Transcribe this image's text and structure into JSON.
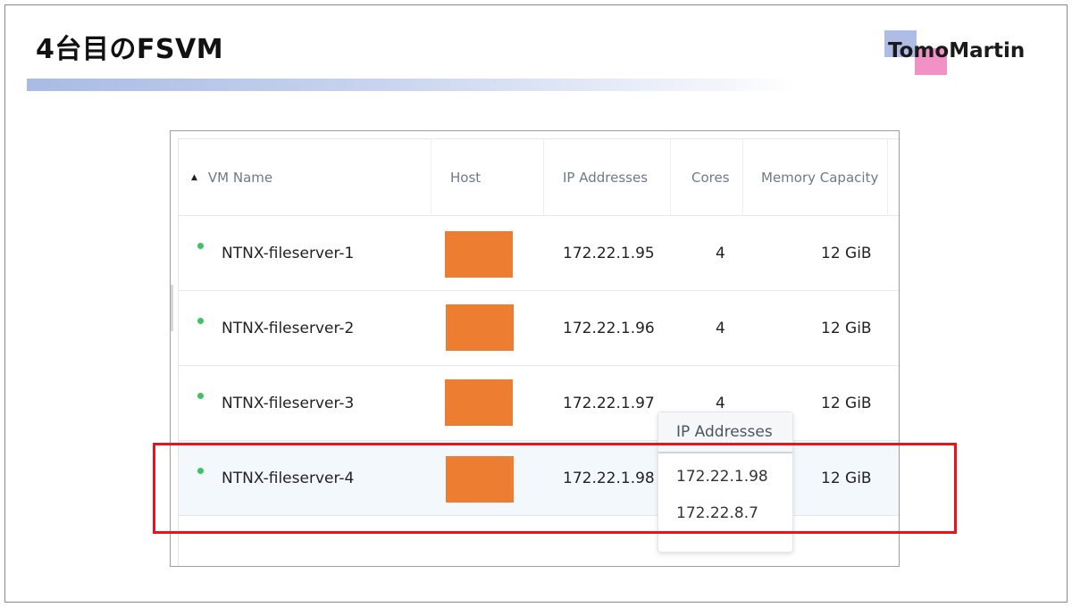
{
  "slide": {
    "title": "4台目のFSVM",
    "logo_text": "TomoMartin"
  },
  "table": {
    "columns": [
      {
        "label": "VM Name",
        "sorted": "ascending"
      },
      {
        "label": "Host"
      },
      {
        "label": "IP Addresses"
      },
      {
        "label": "Cores"
      },
      {
        "label": "Memory Capacity"
      }
    ],
    "rows": [
      {
        "vm_name": "NTNX-fileserver-1",
        "host": "(redacted)",
        "ip": "172.22.1.95",
        "cores": "4",
        "memory": "12 GiB",
        "status": "on"
      },
      {
        "vm_name": "NTNX-fileserver-2",
        "host": "(redacted)",
        "ip": "172.22.1.96",
        "cores": "4",
        "memory": "12 GiB",
        "status": "on"
      },
      {
        "vm_name": "NTNX-fileserver-3",
        "host": "(redacted)",
        "ip": "172.22.1.97",
        "cores": "4",
        "memory": "12 GiB",
        "status": "on"
      },
      {
        "vm_name": "NTNX-fileserver-4",
        "host": "(redacted)",
        "ip": "172.22.1.98",
        "cores": "",
        "memory": "12 GiB",
        "status": "on",
        "selected": true
      }
    ]
  },
  "popover": {
    "title": "IP Addresses",
    "items": [
      "172.22.1.98",
      "172.22.8.7"
    ]
  },
  "colors": {
    "accent_red": "#e8141b",
    "host_redaction": "#ed7e31",
    "status_green": "#3cc45f",
    "logo_blue": "#aebde6",
    "logo_pink": "#f291c6"
  }
}
